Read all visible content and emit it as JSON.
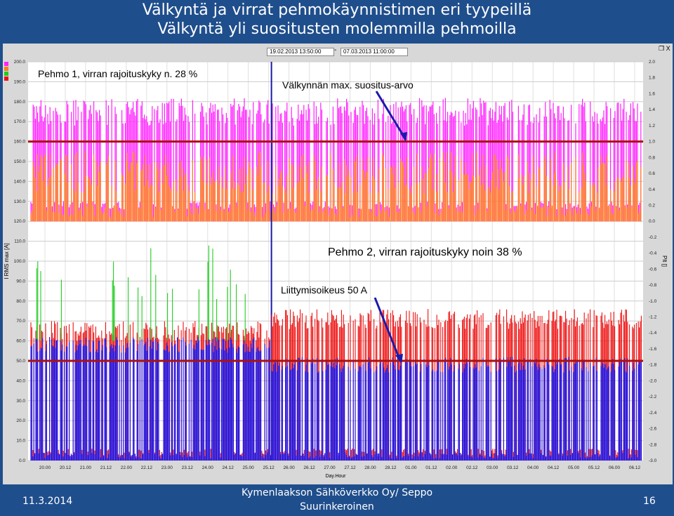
{
  "slide": {
    "title_line1": "Välkyntä ja virrat pehmokäynnistimen eri tyypeillä",
    "title_line2": "Välkyntä yli suositusten molemmilla pehmoilla",
    "footer_date": "11.3.2014",
    "footer_org_line1": "Kymenlaakson Sähköverkko Oy/ Seppo",
    "footer_org_line2": "Suurinkeroinen",
    "page_number": "16"
  },
  "toolbar": {
    "start_date": "19.02.2013  13:50:00",
    "separator": "-",
    "end_date": "07.03.2013  11:00:00",
    "window_buttons": "❐ X"
  },
  "annotations": {
    "pehmo1": "Pehmo 1, virran rajoituskyky n. 28 %",
    "flicker_limit": "Välkynnän max. suositus-arvo",
    "pehmo2": "Pehmo 2, virran rajoituskyky noin 38 %",
    "connection_right": "Liittymisoikeus 50 A"
  },
  "colors": {
    "background": "#1f4e8c",
    "plot": "#ffffff",
    "flicker_magenta": "#ff22ff",
    "flicker_orange": "#ff7f1a",
    "current_red": "#ee1111",
    "current_blue": "#1111ee",
    "current_green": "#22cc22",
    "limit_line": "#aa1111",
    "arrow": "#1a1aaa"
  },
  "chart_data": {
    "type": "line",
    "x_axis_label": "Day.Hour",
    "x_ticks": [
      "20.00",
      "20.12",
      "21.00",
      "21.12",
      "22.00",
      "22.12",
      "23.00",
      "23.12",
      "24.00",
      "24.12",
      "25.00",
      "25.12",
      "26.00",
      "26.12",
      "27.00",
      "27.12",
      "28.00",
      "28.12",
      "01.00",
      "01.12",
      "02.00",
      "02.12",
      "03.00",
      "03.12",
      "04.00",
      "04.12",
      "05.00",
      "05.12",
      "06.00",
      "06.12"
    ],
    "left_axis": {
      "label": "I RMS max [A]",
      "ticks": [
        "200.0",
        "190.0",
        "180.0",
        "170.0",
        "160.0",
        "150.0",
        "140.0",
        "130.0",
        "120.0",
        "110.0",
        "100.0",
        "90.0",
        "80.0",
        "70.0",
        "60.0",
        "50.0",
        "40.0",
        "30.0",
        "20.0",
        "10.0",
        "0.0"
      ],
      "ylim": [
        0,
        200
      ]
    },
    "right_axis": {
      "label": "Plt []",
      "ticks": [
        "2.0",
        "1.8",
        "1.6",
        "1.4",
        "1.2",
        "1.0",
        "0.8",
        "0.6",
        "0.4",
        "0.2",
        "0.0",
        "-0.2",
        "-0.4",
        "-0.6",
        "-0.8",
        "-1.0",
        "-1.2",
        "-1.4",
        "-1.6",
        "-1.8",
        "-2.0",
        "-2.2",
        "-2.4",
        "-2.6",
        "-2.8",
        "-3.0"
      ],
      "ylim": [
        -3,
        2
      ]
    },
    "reference_lines": [
      {
        "axis": "right",
        "value": 1.0
      },
      {
        "axis": "left",
        "value": 50
      }
    ],
    "switch_time": "25.12",
    "series": [
      {
        "panel": "upper",
        "color": "#ff22ff",
        "typical_low": 1.2,
        "typical_high": 1.55
      },
      {
        "panel": "upper",
        "color": "#ff7f1a",
        "typical_low": 0.0,
        "typical_high": 0.88
      },
      {
        "panel": "lower",
        "color": "#ee1111",
        "typical_low": 0,
        "typical_high": 73
      },
      {
        "panel": "lower",
        "color": "#1111ee",
        "typical_low": 0,
        "typical_high": 62
      },
      {
        "panel": "lower",
        "color": "#22cc22",
        "typical_low": 0,
        "typical_high": 108
      }
    ]
  }
}
